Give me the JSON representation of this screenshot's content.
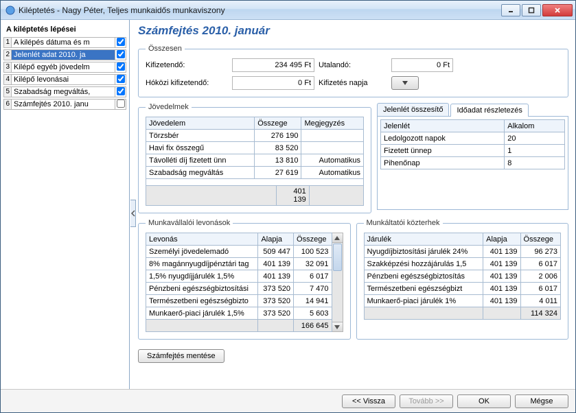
{
  "window": {
    "title": "Kiléptetés - Nagy Péter, Teljes munkaidős munkaviszony"
  },
  "sidebar": {
    "header": "A kiléptetés lépései",
    "steps": [
      {
        "num": "1",
        "label": "A kilépés dátuma és m",
        "checked": true,
        "selected": false
      },
      {
        "num": "2",
        "label": "Jelenlét adat 2010. ja",
        "checked": true,
        "selected": true
      },
      {
        "num": "3",
        "label": "Kilépő egyéb jövedelm",
        "checked": true,
        "selected": false
      },
      {
        "num": "4",
        "label": "Kilépő levonásai",
        "checked": true,
        "selected": false
      },
      {
        "num": "5",
        "label": "Szabadság megváltás,",
        "checked": true,
        "selected": false
      },
      {
        "num": "6",
        "label": "Számfejtés 2010. janu",
        "checked": false,
        "selected": false
      }
    ]
  },
  "page": {
    "title": "Számfejtés 2010. január",
    "summary": {
      "legend": "Összesen",
      "kifizetendo_label": "Kifizetendő:",
      "kifizetendo_value": "234 495 Ft",
      "utalando_label": "Utalandó:",
      "utalando_value": "0 Ft",
      "hokozi_label": "Hóközi kifizetendő:",
      "hokozi_value": "0 Ft",
      "kifizetes_napja_label": "Kifizetés napja"
    },
    "incomes": {
      "legend": "Jövedelmek",
      "columns": [
        "Jövedelem",
        "Összege",
        "Megjegyzés"
      ],
      "rows": [
        [
          "Törzsbér",
          "276 190",
          ""
        ],
        [
          "Havi fix összegű",
          "83 520",
          ""
        ],
        [
          "Távolléti díj fizetett ünn",
          "13 810",
          "Automatikus"
        ],
        [
          "Szabadság megváltás",
          "27 619",
          "Automatikus"
        ]
      ],
      "total": "401 139"
    },
    "attendance": {
      "tab1": "Jelenlét összesítő",
      "tab2": "Időadat részletezés",
      "columns": [
        "Jelenlét",
        "Alkalom"
      ],
      "rows": [
        [
          "Ledolgozott napok",
          "20"
        ],
        [
          "Fizetett ünnep",
          "1"
        ],
        [
          "Pihenőnap",
          "8"
        ]
      ]
    },
    "employee_deductions": {
      "legend": "Munkavállalói levonások",
      "columns": [
        "Levonás",
        "Alapja",
        "Összege"
      ],
      "rows": [
        [
          "Személyi jövedelemadó",
          "509 447",
          "100 523"
        ],
        [
          "8% magánnyugdíjpénztári tag",
          "401 139",
          "32 091"
        ],
        [
          "1,5% nyugdíjjárulék 1,5%",
          "401 139",
          "6 017"
        ],
        [
          "Pénzbeni egészségbiztosítási",
          "373 520",
          "7 470"
        ],
        [
          "Természetbeni egészségbizto",
          "373 520",
          "14 941"
        ],
        [
          "Munkaerő-piaci járulék 1,5%",
          "373 520",
          "5 603"
        ]
      ],
      "total": "166 645"
    },
    "employer_burdens": {
      "legend": "Munkáltatói közterhek",
      "columns": [
        "Járulék",
        "Alapja",
        "Összege"
      ],
      "rows": [
        [
          "Nyugdíjbiztosítási járulék 24%",
          "401 139",
          "96 273"
        ],
        [
          "Szakképzési hozzájárulás 1,5",
          "401 139",
          "6 017"
        ],
        [
          "Pénzbeni egészségbiztosítás",
          "401 139",
          "2 006"
        ],
        [
          "Természetbeni egészségbizt",
          "401 139",
          "6 017"
        ],
        [
          "Munkaerő-piaci járulék 1%",
          "401 139",
          "4 011"
        ]
      ],
      "total": "114 324"
    },
    "save_button": "Számfejtés mentése"
  },
  "footer": {
    "back": "<< Vissza",
    "next": "Tovább >>",
    "ok": "OK",
    "cancel": "Mégse"
  },
  "colors": {
    "accent": "#2a5fa8",
    "selection": "#3a74c4",
    "border": "#9db8d6"
  }
}
